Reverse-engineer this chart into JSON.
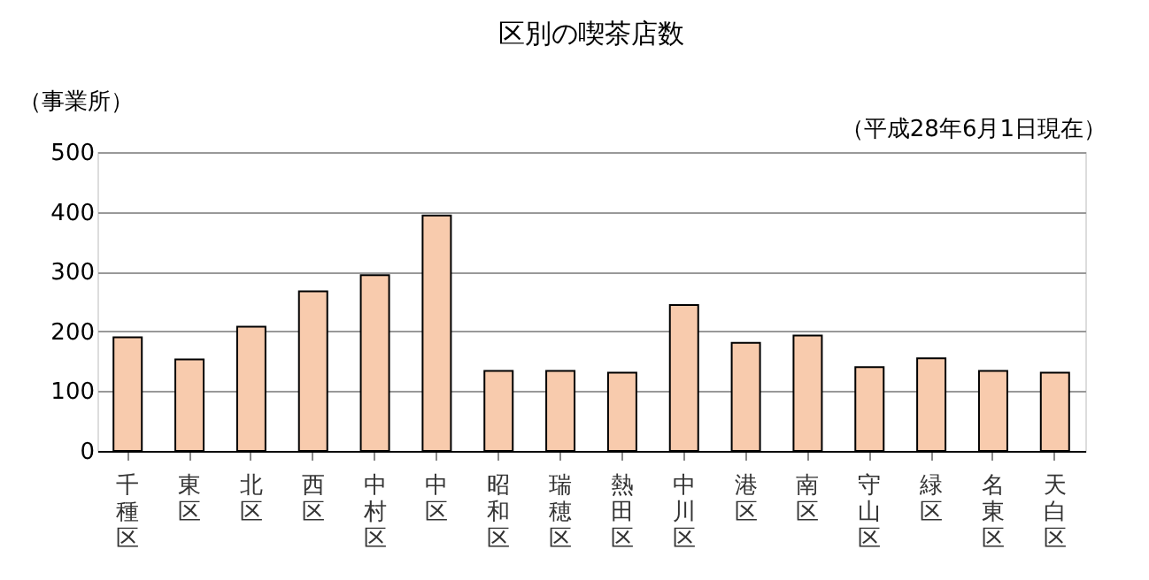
{
  "chart_data": {
    "type": "bar",
    "title": "区別の喫茶店数",
    "ylabel": "（事業所）",
    "annotations": [
      "（平成28年6月1日現在）"
    ],
    "categories": [
      "千種区",
      "東区",
      "北区",
      "西区",
      "中村区",
      "中区",
      "昭和区",
      "瑞穂区",
      "熱田区",
      "中川区",
      "港区",
      "南区",
      "守山区",
      "緑区",
      "名東区",
      "天白区"
    ],
    "values": [
      190,
      153,
      208,
      267,
      294,
      394,
      134,
      134,
      131,
      244,
      181,
      193,
      140,
      155,
      134,
      131
    ],
    "color": "#f8cbad",
    "ylim": [
      0,
      500
    ],
    "yticks": [
      0,
      100,
      200,
      300,
      400,
      500
    ],
    "grid": "y"
  }
}
